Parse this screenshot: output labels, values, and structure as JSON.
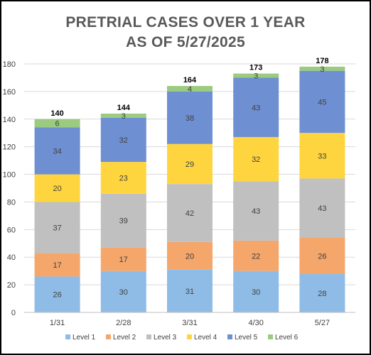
{
  "chart_data": {
    "type": "bar",
    "stacked": true,
    "title": [
      "PRETRIAL CASES OVER 1 YEAR",
      "AS OF 5/27/2025"
    ],
    "categories": [
      "1/31",
      "2/28",
      "3/31",
      "4/30",
      "5/27"
    ],
    "yticks": [
      "0",
      "20",
      "40",
      "60",
      "80",
      "100",
      "120",
      "140",
      "160",
      "180"
    ],
    "ylim": [
      0,
      180
    ],
    "grid": true,
    "legend_position": "bottom",
    "series": [
      {
        "name": "Level 1",
        "color": "#8FBCE6",
        "values": [
          26,
          30,
          31,
          30,
          28
        ]
      },
      {
        "name": "Level 2",
        "color": "#F4A66B",
        "values": [
          17,
          17,
          20,
          22,
          26
        ]
      },
      {
        "name": "Level 3",
        "color": "#C0C0C0",
        "values": [
          37,
          39,
          42,
          43,
          43
        ]
      },
      {
        "name": "Level 4",
        "color": "#FFD53F",
        "values": [
          20,
          23,
          29,
          32,
          33
        ]
      },
      {
        "name": "Level 5",
        "color": "#6E8FD2",
        "values": [
          34,
          32,
          38,
          43,
          45
        ]
      },
      {
        "name": "Level 6",
        "color": "#9ACB7E",
        "values": [
          6,
          3,
          4,
          3,
          3
        ]
      }
    ],
    "totals": [
      "140",
      "144",
      "164",
      "173",
      "178"
    ]
  }
}
